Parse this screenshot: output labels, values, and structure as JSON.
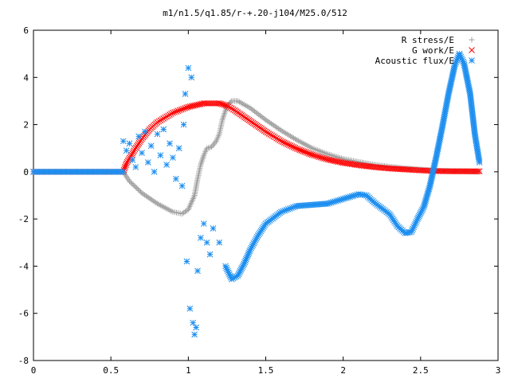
{
  "chart_data": {
    "type": "scatter",
    "title": "m1/n1.5/q1.85/r-+.20-j104/M25.0/512",
    "xlabel": "",
    "ylabel": "",
    "xlim": [
      0,
      3
    ],
    "ylim": [
      -8,
      6
    ],
    "x_ticks": [
      "0",
      "0.5",
      "1",
      "1.5",
      "2",
      "2.5",
      "3"
    ],
    "y_ticks": [
      "-8",
      "-6",
      "-4",
      "-2",
      "0",
      "2",
      "4",
      "6"
    ],
    "grid": false,
    "legend_position": "top-right",
    "series": [
      {
        "name": "R stress/E",
        "marker": "plus",
        "color": "#a0a0a0",
        "points": [
          [
            0.0,
            0.0
          ],
          [
            0.2,
            0.0
          ],
          [
            0.4,
            0.0
          ],
          [
            0.58,
            0.0
          ],
          [
            0.62,
            -0.4
          ],
          [
            0.7,
            -0.9
          ],
          [
            0.8,
            -1.35
          ],
          [
            0.9,
            -1.7
          ],
          [
            0.96,
            -1.78
          ],
          [
            1.0,
            -1.6
          ],
          [
            1.04,
            -1.0
          ],
          [
            1.06,
            -0.3
          ],
          [
            1.08,
            0.3
          ],
          [
            1.1,
            0.7
          ],
          [
            1.12,
            1.0
          ],
          [
            1.15,
            1.05
          ],
          [
            1.18,
            1.3
          ],
          [
            1.2,
            1.6
          ],
          [
            1.22,
            2.2
          ],
          [
            1.25,
            2.8
          ],
          [
            1.28,
            3.0
          ],
          [
            1.32,
            3.0
          ],
          [
            1.4,
            2.7
          ],
          [
            1.5,
            2.2
          ],
          [
            1.6,
            1.75
          ],
          [
            1.7,
            1.35
          ],
          [
            1.8,
            1.0
          ],
          [
            1.9,
            0.75
          ],
          [
            2.0,
            0.55
          ],
          [
            2.1,
            0.42
          ],
          [
            2.2,
            0.3
          ],
          [
            2.3,
            0.22
          ],
          [
            2.4,
            0.15
          ],
          [
            2.5,
            0.1
          ],
          [
            2.6,
            0.05
          ],
          [
            2.7,
            0.03
          ],
          [
            2.8,
            0.02
          ],
          [
            2.88,
            0.0
          ]
        ]
      },
      {
        "name": "G work/E",
        "marker": "cross",
        "color": "#ff0000",
        "points": [
          [
            0.0,
            0.0
          ],
          [
            0.2,
            0.0
          ],
          [
            0.4,
            0.0
          ],
          [
            0.58,
            0.0
          ],
          [
            0.6,
            0.35
          ],
          [
            0.65,
            0.9
          ],
          [
            0.7,
            1.4
          ],
          [
            0.75,
            1.8
          ],
          [
            0.8,
            2.1
          ],
          [
            0.9,
            2.5
          ],
          [
            1.0,
            2.75
          ],
          [
            1.1,
            2.9
          ],
          [
            1.2,
            2.9
          ],
          [
            1.25,
            2.8
          ],
          [
            1.3,
            2.6
          ],
          [
            1.4,
            2.15
          ],
          [
            1.5,
            1.7
          ],
          [
            1.6,
            1.3
          ],
          [
            1.7,
            0.98
          ],
          [
            1.8,
            0.72
          ],
          [
            1.9,
            0.52
          ],
          [
            2.0,
            0.38
          ],
          [
            2.1,
            0.28
          ],
          [
            2.2,
            0.2
          ],
          [
            2.3,
            0.14
          ],
          [
            2.4,
            0.1
          ],
          [
            2.5,
            0.06
          ],
          [
            2.6,
            0.03
          ],
          [
            2.7,
            0.02
          ],
          [
            2.8,
            0.02
          ],
          [
            2.88,
            0.02
          ]
        ]
      },
      {
        "name": "Acoustic flux/E",
        "marker": "star",
        "color": "#1e8ff0",
        "points": [
          [
            0.0,
            0.0
          ],
          [
            0.2,
            0.0
          ],
          [
            0.4,
            0.0
          ],
          [
            0.58,
            0.0
          ],
          [
            0.58,
            1.3
          ],
          [
            0.6,
            0.9
          ],
          [
            0.62,
            1.2
          ],
          [
            0.64,
            0.5
          ],
          [
            0.66,
            0.2
          ],
          [
            0.68,
            1.5
          ],
          [
            0.7,
            0.8
          ],
          [
            0.72,
            1.7
          ],
          [
            0.74,
            0.4
          ],
          [
            0.76,
            1.1
          ],
          [
            0.78,
            0.0
          ],
          [
            0.8,
            1.6
          ],
          [
            0.82,
            0.7
          ],
          [
            0.84,
            1.8
          ],
          [
            0.86,
            0.3
          ],
          [
            0.88,
            1.2
          ],
          [
            0.9,
            0.6
          ],
          [
            0.92,
            -0.3
          ],
          [
            0.94,
            1.0
          ],
          [
            0.96,
            -0.6
          ],
          [
            0.97,
            2.0
          ],
          [
            0.98,
            3.3
          ],
          [
            0.99,
            -3.8
          ],
          [
            1.0,
            4.4
          ],
          [
            1.01,
            -5.8
          ],
          [
            1.02,
            4.0
          ],
          [
            1.03,
            -6.4
          ],
          [
            1.04,
            -6.9
          ],
          [
            1.05,
            -6.6
          ],
          [
            1.06,
            -4.2
          ],
          [
            1.08,
            -2.8
          ],
          [
            1.1,
            -2.2
          ],
          [
            1.12,
            -3.0
          ],
          [
            1.14,
            -3.5
          ],
          [
            1.16,
            -2.4
          ],
          [
            1.2,
            -3.0
          ],
          [
            1.24,
            -4.0
          ],
          [
            1.28,
            -4.55
          ],
          [
            1.32,
            -4.4
          ],
          [
            1.36,
            -3.9
          ],
          [
            1.4,
            -3.3
          ],
          [
            1.45,
            -2.7
          ],
          [
            1.5,
            -2.2
          ],
          [
            1.6,
            -1.7
          ],
          [
            1.7,
            -1.45
          ],
          [
            1.8,
            -1.4
          ],
          [
            1.9,
            -1.35
          ],
          [
            2.0,
            -1.15
          ],
          [
            2.1,
            -0.95
          ],
          [
            2.15,
            -1.0
          ],
          [
            2.2,
            -1.3
          ],
          [
            2.3,
            -1.8
          ],
          [
            2.35,
            -2.3
          ],
          [
            2.4,
            -2.6
          ],
          [
            2.44,
            -2.55
          ],
          [
            2.48,
            -2.0
          ],
          [
            2.52,
            -1.5
          ],
          [
            2.56,
            -0.6
          ],
          [
            2.6,
            0.6
          ],
          [
            2.64,
            1.9
          ],
          [
            2.68,
            3.3
          ],
          [
            2.72,
            4.5
          ],
          [
            2.75,
            5.0
          ],
          [
            2.78,
            4.6
          ],
          [
            2.82,
            3.3
          ],
          [
            2.85,
            1.6
          ],
          [
            2.88,
            0.4
          ]
        ]
      }
    ]
  }
}
